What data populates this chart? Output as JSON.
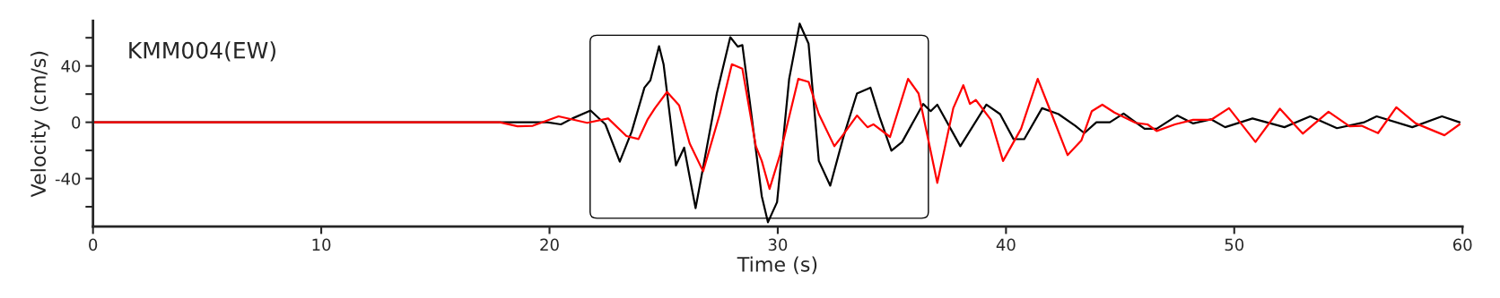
{
  "chart_data": {
    "type": "line",
    "title": "KMM004(EW)",
    "xlabel": "Time (s)",
    "ylabel": "Velocity (cm/s)",
    "xlim": [
      0,
      60
    ],
    "ylim": [
      -74,
      72
    ],
    "xticks": [
      0,
      10,
      20,
      30,
      40,
      50,
      60
    ],
    "yticks": [
      {
        "value": -60,
        "label": null
      },
      -40,
      {
        "value": -20,
        "label": null
      },
      0,
      {
        "value": 20,
        "label": null
      },
      40,
      {
        "value": 60,
        "label": null
      }
    ],
    "grid": false,
    "legend": false,
    "series": [
      {
        "color": "#000000",
        "x": [
          0,
          17.82,
          19.9,
          20.5,
          21.0,
          21.8,
          22.45,
          23.08,
          23.6,
          24.16,
          24.42,
          24.8,
          25.0,
          25.54,
          25.9,
          26.4,
          27.33,
          27.92,
          28.25,
          28.45,
          28.78,
          29.3,
          29.57,
          29.97,
          30.5,
          30.96,
          31.35,
          31.8,
          32.3,
          32.87,
          33.47,
          34.06,
          34.46,
          34.98,
          35.45,
          36.37,
          36.7,
          36.99,
          38.0,
          39.14,
          39.74,
          40.33,
          40.8,
          41.58,
          42.3,
          43.04,
          43.43,
          43.96,
          44.55,
          45.15,
          46.07,
          46.6,
          47.5,
          48.2,
          48.98,
          49.6,
          50.8,
          52.2,
          53.33,
          54.5,
          55.7,
          56.24,
          57.8,
          59.1,
          59.87
        ],
        "values": [
          0,
          0,
          0,
          -1.5,
          2.7,
          8.3,
          -1.5,
          -28,
          -6.7,
          24.6,
          29.8,
          54,
          41,
          -30.6,
          -18,
          -61,
          20.4,
          60.4,
          53.7,
          54.8,
          14,
          -52.5,
          -71,
          -56.7,
          30.8,
          70,
          55.8,
          -27.5,
          -45,
          -10.8,
          20.4,
          24.6,
          3.8,
          -20.2,
          -14,
          13,
          7.9,
          12.5,
          -17,
          12.5,
          5.8,
          -11.9,
          -12,
          10,
          5.8,
          -2.5,
          -7.7,
          0,
          0,
          6.2,
          -4.6,
          -4.6,
          4.8,
          -0.8,
          2.1,
          -3.5,
          2.7,
          -3.5,
          4.2,
          -4.2,
          0,
          4.2,
          -3.5,
          4.2,
          0
        ]
      },
      {
        "color": "#ff0000",
        "x": [
          0,
          17.82,
          18.6,
          19.27,
          20.4,
          21.65,
          22.57,
          23.37,
          23.9,
          24.29,
          24.62,
          25.15,
          25.68,
          26.14,
          26.73,
          27.46,
          27.99,
          28.45,
          29.04,
          29.3,
          29.64,
          30.1,
          30.9,
          31.35,
          31.8,
          32.48,
          32.87,
          33.47,
          33.93,
          34.19,
          34.92,
          35.71,
          36.17,
          36.99,
          37.69,
          38.13,
          38.42,
          38.68,
          39.34,
          39.87,
          40.66,
          41.39,
          41.85,
          42.7,
          43.3,
          43.76,
          44.22,
          44.75,
          45.68,
          46.2,
          46.6,
          47.4,
          48.2,
          48.98,
          49.77,
          50.93,
          52.0,
          53.0,
          54.13,
          55.05,
          55.58,
          56.3,
          57.1,
          57.95,
          59.21,
          59.87
        ],
        "values": [
          0,
          0,
          -2.9,
          -2.5,
          4.2,
          -0.4,
          2.7,
          -9.8,
          -11.9,
          1.7,
          10,
          21.5,
          12,
          -15,
          -34.8,
          5.8,
          41.2,
          38,
          -17,
          -27.5,
          -47.3,
          -23,
          30.8,
          28.7,
          5.8,
          -17,
          -8.8,
          4.8,
          -3.5,
          -1.5,
          -10.4,
          30.8,
          20.4,
          -43,
          10,
          26.3,
          13,
          15.8,
          1.7,
          -27.5,
          -4.6,
          30.8,
          12,
          -23.3,
          -13,
          7.9,
          12.5,
          6.9,
          -0.4,
          -1.5,
          -6.2,
          -1.5,
          1.7,
          1.7,
          10,
          -14,
          9.6,
          -8.1,
          7.5,
          -2.9,
          -2.5,
          -7.7,
          10.6,
          -0.8,
          -9.2,
          -1.5
        ]
      }
    ]
  }
}
